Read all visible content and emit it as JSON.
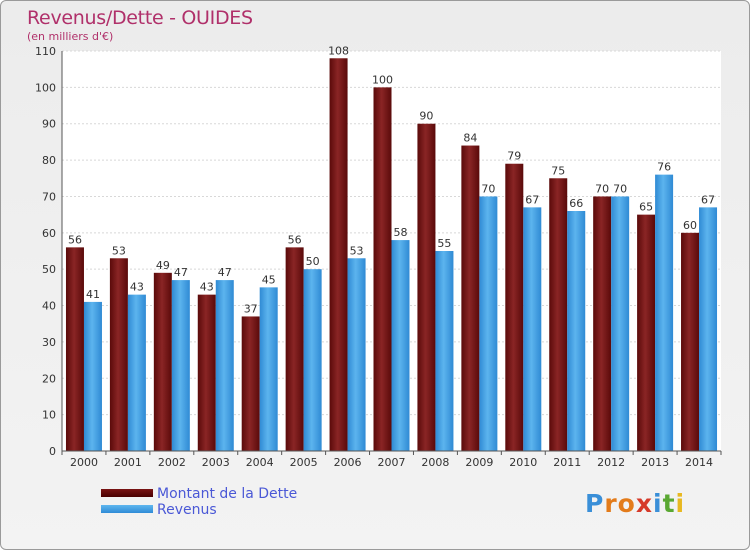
{
  "header": {
    "title": "Revenus/Dette - OUIDES",
    "subtitle": "(en milliers d'€)"
  },
  "chart_data": {
    "type": "bar",
    "title": "Revenus/Dette - OUIDES",
    "ylabel": "(en milliers d'€)",
    "xlabel": "",
    "categories": [
      "2000",
      "2001",
      "2002",
      "2003",
      "2004",
      "2005",
      "2006",
      "2007",
      "2008",
      "2009",
      "2010",
      "2011",
      "2012",
      "2013",
      "2014"
    ],
    "series": [
      {
        "name": "Montant de la Dette",
        "color": "#7a1a1a",
        "values": [
          56,
          53,
          49,
          43,
          37,
          56,
          108,
          100,
          90,
          84,
          79,
          75,
          70,
          65,
          60
        ]
      },
      {
        "name": "Revenus",
        "color": "#4aa3e4",
        "values": [
          41,
          43,
          47,
          47,
          45,
          50,
          53,
          58,
          55,
          70,
          67,
          66,
          70,
          76,
          67
        ]
      }
    ],
    "ylim": [
      0,
      110
    ],
    "yticks": [
      0,
      10,
      20,
      30,
      40,
      50,
      60,
      70,
      80,
      90,
      100,
      110
    ],
    "grid": true,
    "legend_position": "bottom-left"
  },
  "legend": {
    "items": [
      {
        "label": "Montant de la Dette"
      },
      {
        "label": "Revenus"
      }
    ]
  },
  "logo": {
    "letters": [
      "P",
      "r",
      "o",
      "x",
      "i",
      "t",
      "i"
    ],
    "colors": [
      "#3a8fd8",
      "#e37b1a",
      "#e37b1a",
      "#d63a2a",
      "#3a8fd8",
      "#5aa832",
      "#e8b820"
    ]
  }
}
